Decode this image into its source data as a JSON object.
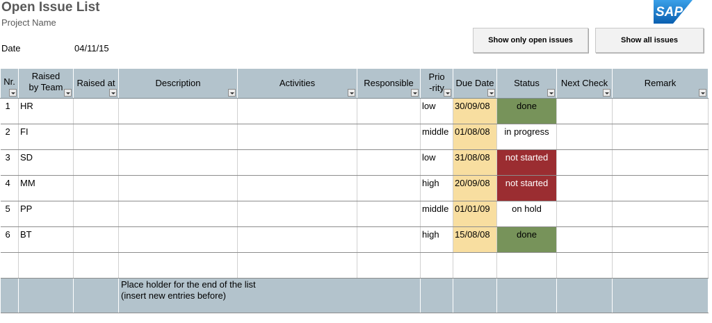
{
  "header": {
    "title": "Open Issue List",
    "subtitle": "Project Name",
    "date_label": "Date",
    "date_value": "04/11/15",
    "logo_text": "SAP"
  },
  "buttons": {
    "show_open": "Show only  open issues",
    "show_all": "Show all issues"
  },
  "columns": {
    "nr": "Nr.",
    "raised_by": "Raised by Team",
    "raised_at": "Raised at",
    "description": "Description",
    "activities": "Activities",
    "responsible": "Responsible",
    "priority": "Prio-rity",
    "due_date": "Due Date",
    "status": "Status",
    "next_check": "Next Check",
    "remark": "Remark"
  },
  "rows": [
    {
      "nr": "1",
      "team": "HR",
      "priority": "low",
      "due": "30/09/08",
      "status": "done"
    },
    {
      "nr": "2",
      "team": "FI",
      "priority": "middle",
      "due": "01/08/08",
      "status": "in progress"
    },
    {
      "nr": "3",
      "team": "SD",
      "priority": "low",
      "due": "31/08/08",
      "status": "not started"
    },
    {
      "nr": "4",
      "team": "MM",
      "priority": "high",
      "due": "20/09/08",
      "status": "not started"
    },
    {
      "nr": "5",
      "team": "PP",
      "priority": "middle",
      "due": "01/01/09",
      "status": "on hold"
    },
    {
      "nr": "6",
      "team": "BT",
      "priority": "high",
      "due": "15/08/08",
      "status": "done"
    }
  ],
  "placeholder": {
    "line1": "Place holder for the end of the list",
    "line2": "(insert new entries before)"
  },
  "colors": {
    "header_bg": "#b3c3cc",
    "due_bg": "#f8dea0",
    "done": "#77935a",
    "not_started": "#9b2d31",
    "sap_blue": "#0a6ab8"
  }
}
